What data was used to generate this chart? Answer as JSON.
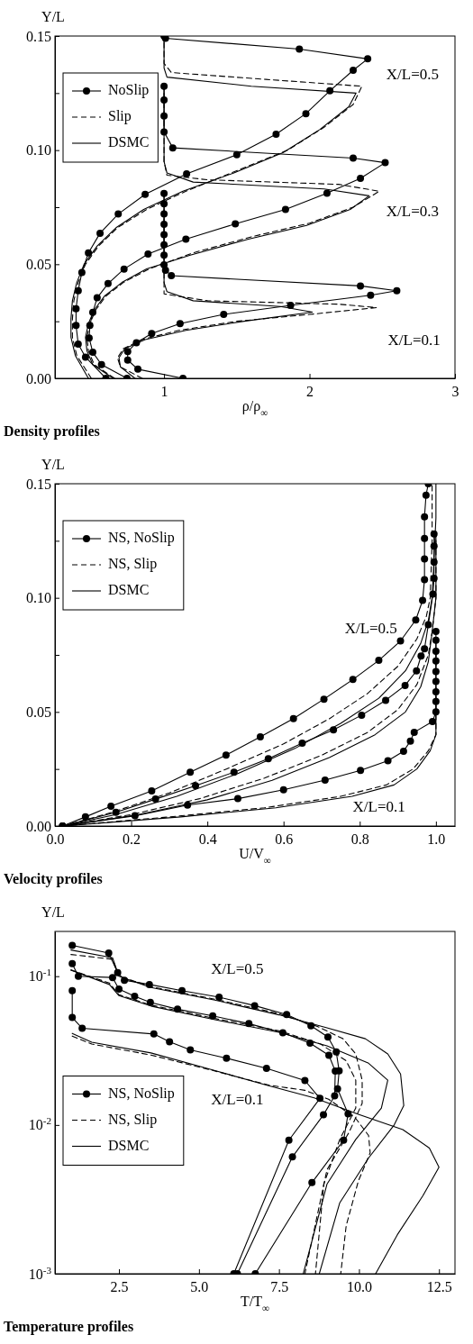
{
  "chart_data": [
    {
      "type": "line",
      "title": "Density profiles",
      "xlabel": "ρ/ρ$_{∞}$",
      "ylabel": "Y/L",
      "xlim": [
        0.25,
        3
      ],
      "ylim": [
        0,
        0.15
      ],
      "xticks": [
        1,
        2,
        3
      ],
      "yticks": [
        {
          "value": 0,
          "label": "0.00"
        },
        {
          "value": 0.025,
          "label": null
        },
        {
          "value": 0.05,
          "label": "0.05"
        },
        {
          "value": 0.075,
          "label": null
        },
        {
          "value": 0.1,
          "label": "0.10"
        },
        {
          "value": 0.125,
          "label": null
        },
        {
          "value": 0.15,
          "label": "0.15"
        }
      ],
      "legend": "top left",
      "annotations": [
        "X/L=0.5",
        "X/L=0.3",
        "X/L=0.1"
      ],
      "series": [
        {
          "name": "NoSlip",
          "color": "#000000",
          "marker": "circle",
          "line_style": "solid",
          "x": [
            1.13,
            0.82,
            0.75,
            0.75,
            0.81,
            0.915,
            1.11,
            1.41,
            1.87,
            2.42,
            2.6,
            2.35,
            1.05,
            1.01,
            1.0,
            1.0,
            1.0,
            1.0,
            1.0,
            1.0,
            1.0,
            1.0
          ],
          "values": [
            0,
            0.004,
            0.008,
            0.0117,
            0.0156,
            0.0196,
            0.024,
            0.028,
            0.032,
            0.0364,
            0.0384,
            0.0405,
            0.045,
            0.0474,
            0.0497,
            0.054,
            0.0585,
            0.063,
            0.0675,
            0.072,
            0.0765,
            0.081
          ]
        },
        {
          "name": "Slip",
          "color": "#000000",
          "marker": "none",
          "line_style": "dashed",
          "x": [
            0.85,
            0.7,
            0.68,
            0.72,
            0.85,
            1.1,
            1.5,
            2.0,
            2.46,
            2.2,
            1.3,
            1.0,
            1.0,
            1.0,
            1.0
          ],
          "values": [
            0,
            0.005,
            0.009,
            0.013,
            0.017,
            0.021,
            0.025,
            0.028,
            0.031,
            0.0325,
            0.034,
            0.037,
            0.04,
            0.045,
            0.082
          ]
        },
        {
          "name": "DSMC",
          "color": "#000000",
          "marker": "none",
          "line_style": "solid",
          "x": [
            0.8,
            0.7,
            0.69,
            0.73,
            0.87,
            1.15,
            1.55,
            2.02,
            1.8,
            1.2,
            1.02,
            1.0,
            1.0,
            1.0
          ],
          "values": [
            0,
            0.005,
            0.009,
            0.013,
            0.017,
            0.021,
            0.025,
            0.029,
            0.0315,
            0.034,
            0.038,
            0.042,
            0.045,
            0.082
          ]
        },
        {
          "color": "#000000",
          "marker": "circle",
          "line_style": "solid",
          "x": [
            0.745,
            0.57,
            0.51,
            0.485,
            0.49,
            0.51,
            0.54,
            0.615,
            0.725,
            0.89,
            1.15,
            1.49,
            1.835,
            2.12,
            2.35,
            2.52,
            2.3,
            1.06,
            1.0,
            1.0,
            1.0,
            1.0
          ],
          "values": [
            0,
            0.006,
            0.0114,
            0.0177,
            0.0232,
            0.0289,
            0.0353,
            0.0415,
            0.0479,
            0.0545,
            0.061,
            0.0677,
            0.074,
            0.0811,
            0.0876,
            0.0945,
            0.0965,
            0.101,
            0.108,
            0.115,
            0.122,
            0.128
          ]
        },
        {
          "color": "#000000",
          "marker": "none",
          "line_style": "dashed",
          "x": [
            0.66,
            0.52,
            0.48,
            0.47,
            0.49,
            0.53,
            0.6,
            0.72,
            0.9,
            1.2,
            1.6,
            2.0,
            2.3,
            2.48,
            2.2,
            1.3,
            1.02,
            1.0,
            1.0
          ],
          "values": [
            0,
            0.006,
            0.012,
            0.018,
            0.024,
            0.03,
            0.036,
            0.042,
            0.048,
            0.055,
            0.062,
            0.068,
            0.075,
            0.082,
            0.085,
            0.087,
            0.089,
            0.095,
            0.128
          ]
        },
        {
          "color": "#000000",
          "marker": "none",
          "line_style": "solid",
          "x": [
            0.65,
            0.51,
            0.47,
            0.46,
            0.48,
            0.52,
            0.59,
            0.71,
            0.88,
            1.18,
            1.58,
            1.98,
            2.28,
            2.41,
            2.1,
            1.2,
            1.02,
            1.0,
            1.0
          ],
          "values": [
            0,
            0.006,
            0.012,
            0.018,
            0.024,
            0.03,
            0.036,
            0.042,
            0.048,
            0.054,
            0.061,
            0.067,
            0.074,
            0.08,
            0.083,
            0.086,
            0.09,
            0.095,
            0.128
          ]
        },
        {
          "color": "#000000",
          "marker": "circle",
          "line_style": "solid",
          "x": [
            0.6,
            0.46,
            0.41,
            0.395,
            0.395,
            0.41,
            0.435,
            0.48,
            0.56,
            0.685,
            0.87,
            1.155,
            1.5,
            1.77,
            1.975,
            2.14,
            2.3,
            2.4,
            1.93,
            1.01,
            1.0
          ],
          "values": [
            0,
            0.0093,
            0.015,
            0.0232,
            0.0305,
            0.0384,
            0.0464,
            0.055,
            0.0636,
            0.072,
            0.0806,
            0.0896,
            0.098,
            0.107,
            0.116,
            0.126,
            0.135,
            0.14,
            0.1443,
            0.149,
            0.15
          ]
        },
        {
          "color": "#000000",
          "marker": "none",
          "line_style": "dashed",
          "x": [
            0.5,
            0.4,
            0.37,
            0.37,
            0.38,
            0.41,
            0.46,
            0.55,
            0.68,
            0.88,
            1.15,
            1.5,
            1.85,
            2.1,
            2.3,
            2.36,
            1.7,
            1.05,
            1.0,
            1.0
          ],
          "values": [
            0,
            0.01,
            0.018,
            0.026,
            0.034,
            0.042,
            0.05,
            0.058,
            0.066,
            0.074,
            0.082,
            0.091,
            0.1,
            0.11,
            0.12,
            0.128,
            0.131,
            0.134,
            0.138,
            0.15
          ]
        },
        {
          "color": "#000000",
          "marker": "none",
          "line_style": "solid",
          "x": [
            0.48,
            0.39,
            0.36,
            0.36,
            0.37,
            0.4,
            0.45,
            0.54,
            0.67,
            0.86,
            1.13,
            1.48,
            1.82,
            2.07,
            2.27,
            2.32,
            1.6,
            1.02,
            1.0,
            1.0
          ],
          "values": [
            0,
            0.01,
            0.018,
            0.026,
            0.034,
            0.042,
            0.05,
            0.058,
            0.066,
            0.074,
            0.082,
            0.09,
            0.099,
            0.109,
            0.119,
            0.125,
            0.128,
            0.132,
            0.136,
            0.15
          ]
        }
      ]
    },
    {
      "type": "line",
      "title": "Velocity profiles",
      "xlabel": "U/V$_{∞}$",
      "ylabel": "Y/L",
      "xlim": [
        0,
        1.05
      ],
      "ylim": [
        0,
        0.15
      ],
      "xticks": [
        {
          "value": 0,
          "label": "0.0"
        },
        {
          "value": 0.2,
          "label": "0.2"
        },
        {
          "value": 0.4,
          "label": "0.4"
        },
        {
          "value": 0.6,
          "label": "0.6"
        },
        {
          "value": 0.8,
          "label": "0.8"
        },
        {
          "value": 1.0,
          "label": "1.0"
        }
      ],
      "yticks": [
        {
          "value": 0,
          "label": "0.00"
        },
        {
          "value": 0.025,
          "label": null
        },
        {
          "value": 0.05,
          "label": "0.05"
        },
        {
          "value": 0.075,
          "label": null
        },
        {
          "value": 0.1,
          "label": "0.10"
        },
        {
          "value": 0.125,
          "label": null
        },
        {
          "value": 0.15,
          "label": "0.15"
        }
      ],
      "legend": "top left",
      "annotations": [
        "X/L=0.5",
        "X/L=0.1"
      ],
      "series": [
        {
          "name": "NS, NoSlip",
          "color": "#000000",
          "marker": "circle",
          "line_style": "solid",
          "x": [
            0.02,
            0.21,
            0.348,
            0.48,
            0.6,
            0.709,
            0.802,
            0.874,
            0.915,
            0.933,
            0.943,
            0.991,
            1.0,
            1.0,
            1.0,
            1.0,
            1.0,
            1.0,
            1.0,
            1.0,
            1.0
          ],
          "values": [
            0,
            0.0045,
            0.0092,
            0.012,
            0.0159,
            0.0201,
            0.0244,
            0.0286,
            0.0328,
            0.0372,
            0.0411,
            0.0458,
            0.05,
            0.0546,
            0.0588,
            0.0634,
            0.0677,
            0.0723,
            0.0766,
            0.0814,
            0.0853
          ]
        },
        {
          "name": "NS, Slip",
          "color": "#000000",
          "marker": "none",
          "line_style": "dashed",
          "x": [
            0.02,
            0.3,
            0.55,
            0.75,
            0.87,
            0.94,
            0.98,
            1.0,
            1.0
          ],
          "values": [
            0,
            0.004,
            0.008,
            0.013,
            0.018,
            0.025,
            0.033,
            0.04,
            0.08
          ]
        },
        {
          "name": "DSMC",
          "color": "#000000",
          "marker": "none",
          "line_style": "solid",
          "x": [
            0.02,
            0.33,
            0.58,
            0.78,
            0.89,
            0.95,
            0.985,
            1.0,
            1.0
          ],
          "values": [
            0,
            0.004,
            0.008,
            0.013,
            0.018,
            0.025,
            0.033,
            0.04,
            0.078
          ]
        },
        {
          "color": "#000000",
          "marker": "circle",
          "line_style": "solid",
          "x": [
            0.02,
            0.16,
            0.264,
            0.369,
            0.47,
            0.56,
            0.649,
            0.731,
            0.805,
            0.868,
            0.919,
            0.949,
            0.961,
            0.97,
            0.98,
            0.992,
            0.995,
            0.995,
            0.995,
            0.995
          ],
          "values": [
            0,
            0.006,
            0.0118,
            0.0177,
            0.0236,
            0.0295,
            0.0363,
            0.0421,
            0.0486,
            0.0551,
            0.0616,
            0.068,
            0.0745,
            0.0777,
            0.0882,
            0.1016,
            0.1086,
            0.1157,
            0.1227,
            0.128
          ]
        },
        {
          "color": "#000000",
          "marker": "none",
          "line_style": "dashed",
          "x": [
            0.02,
            0.2,
            0.38,
            0.55,
            0.7,
            0.82,
            0.9,
            0.95,
            0.98,
            0.99,
            1.0,
            1.0
          ],
          "values": [
            0,
            0.005,
            0.012,
            0.021,
            0.031,
            0.041,
            0.051,
            0.062,
            0.075,
            0.085,
            0.1,
            0.128
          ]
        },
        {
          "color": "#000000",
          "marker": "none",
          "line_style": "solid",
          "x": [
            0.02,
            0.22,
            0.4,
            0.57,
            0.72,
            0.84,
            0.92,
            0.96,
            0.98,
            0.99,
            1.0,
            1.0
          ],
          "values": [
            0,
            0.005,
            0.0115,
            0.02,
            0.03,
            0.04,
            0.05,
            0.061,
            0.072,
            0.085,
            0.1,
            0.128
          ]
        },
        {
          "color": "#000000",
          "marker": "circle",
          "line_style": "solid",
          "x": [
            0.02,
            0.08,
            0.147,
            0.254,
            0.355,
            0.449,
            0.539,
            0.626,
            0.706,
            0.782,
            0.85,
            0.907,
            0.947,
            0.965,
            0.97,
            0.97,
            0.97,
            0.97,
            0.974,
            0.98
          ],
          "values": [
            0,
            0.004,
            0.0087,
            0.0154,
            0.0236,
            0.0311,
            0.0391,
            0.0471,
            0.0556,
            0.0642,
            0.0726,
            0.0811,
            0.0903,
            0.0989,
            0.108,
            0.117,
            0.126,
            0.1355,
            0.145,
            0.15
          ]
        },
        {
          "color": "#000000",
          "marker": "none",
          "line_style": "dashed",
          "x": [
            0.02,
            0.15,
            0.3,
            0.45,
            0.6,
            0.72,
            0.82,
            0.9,
            0.95,
            0.975,
            0.985,
            0.99,
            0.99
          ],
          "values": [
            0,
            0.006,
            0.0145,
            0.025,
            0.036,
            0.047,
            0.058,
            0.07,
            0.082,
            0.092,
            0.1,
            0.125,
            0.15
          ]
        },
        {
          "color": "#000000",
          "marker": "none",
          "line_style": "solid",
          "x": [
            0.02,
            0.16,
            0.32,
            0.48,
            0.63,
            0.75,
            0.85,
            0.92,
            0.96,
            0.98,
            0.99,
            1.0,
            1.0
          ],
          "values": [
            0,
            0.005,
            0.013,
            0.023,
            0.034,
            0.045,
            0.056,
            0.068,
            0.08,
            0.09,
            0.1,
            0.135,
            0.15
          ]
        }
      ]
    },
    {
      "type": "line",
      "title": "Temperature profiles",
      "xlabel": "T/T$_{∞}$",
      "ylabel": "Y/L",
      "log": "y",
      "xlim": [
        0.5,
        13
      ],
      "ylim": [
        0.001,
        0.2
      ],
      "xticks": [
        {
          "value": 2.5,
          "label": "2.5"
        },
        {
          "value": 5.0,
          "label": "5.0"
        },
        {
          "value": 7.5,
          "label": "7.5"
        },
        {
          "value": 10.0,
          "label": "10.0"
        },
        {
          "value": 12.5,
          "label": "12.5"
        }
      ],
      "yticks": [
        {
          "value": 0.001,
          "label": "10$^{-3}$"
        },
        {
          "value": 0.01,
          "label": "10$^{-2}$"
        },
        {
          "value": 0.1,
          "label": "10$^{-1}$"
        }
      ],
      "legend": "left",
      "annotations": [
        "X/L=0.5",
        "X/L=0.1"
      ],
      "series": [
        {
          "name": "NS, NoSlip",
          "color": "#000000",
          "marker": "circle",
          "line_style": "solid",
          "x": [
            1.04,
            1.04,
            1.35,
            3.59,
            4.08,
            4.73,
            5.86,
            7.11,
            8.31,
            8.78,
            7.81,
            6.09
          ],
          "values": [
            0.08,
            0.0528,
            0.0447,
            0.0409,
            0.0363,
            0.032,
            0.0281,
            0.024,
            0.0199,
            0.0151,
            0.0079,
            0.001
          ]
        },
        {
          "name": "NS, Slip",
          "color": "#000000",
          "marker": "none",
          "line_style": "dashed",
          "x": [
            1.04,
            1.65,
            3.5,
            5.35,
            7.2,
            8.31,
            9.05,
            9.88,
            10.3,
            10.35,
            9.98,
            9.6,
            9.43
          ],
          "values": [
            0.0396,
            0.035,
            0.0295,
            0.0235,
            0.0185,
            0.0171,
            0.0149,
            0.0112,
            0.0085,
            0.0065,
            0.0042,
            0.0021,
            0.001
          ]
        },
        {
          "name": "DSMC",
          "color": "#000000",
          "marker": "none",
          "line_style": "solid",
          "x": [
            1.04,
            1.65,
            3.5,
            5.35,
            7.2,
            8.6,
            9.98,
            11.37,
            12.2,
            12.5,
            12.0,
            11.2,
            10.52
          ],
          "values": [
            0.0413,
            0.036,
            0.0305,
            0.0237,
            0.0183,
            0.0152,
            0.0118,
            0.0093,
            0.007,
            0.0052,
            0.00335,
            0.00183,
            0.001
          ]
        },
        {
          "color": "#000000",
          "marker": "circle",
          "line_style": "solid",
          "x": [
            1.04,
            1.23,
            2.3,
            2.5,
            2.99,
            3.48,
            4.33,
            5.43,
            6.56,
            7.62,
            8.47,
            9.06,
            9.26,
            9.24,
            8.89,
            7.92,
            6.2
          ],
          "values": [
            0.1216,
            0.1,
            0.098,
            0.082,
            0.0733,
            0.0667,
            0.06,
            0.0541,
            0.048,
            0.0417,
            0.0355,
            0.0294,
            0.023,
            0.0157,
            0.0117,
            0.0061,
            0.001
          ]
        },
        {
          "color": "#000000",
          "marker": "none",
          "line_style": "dashed",
          "x": [
            1.0,
            2.2,
            2.5,
            3.5,
            5.5,
            7.5,
            8.8,
            9.6,
            9.9,
            9.9,
            9.4,
            8.9,
            8.64
          ],
          "values": [
            0.11,
            0.09,
            0.075,
            0.064,
            0.052,
            0.043,
            0.035,
            0.027,
            0.02,
            0.013,
            0.008,
            0.004,
            0.001
          ]
        },
        {
          "color": "#000000",
          "marker": "none",
          "line_style": "solid",
          "x": [
            1.0,
            2.2,
            2.5,
            3.5,
            5.5,
            7.5,
            9.0,
            10.3,
            10.9,
            10.7,
            9.9,
            9.0,
            8.26
          ],
          "values": [
            0.11,
            0.088,
            0.074,
            0.063,
            0.051,
            0.042,
            0.034,
            0.026,
            0.02,
            0.013,
            0.008,
            0.004,
            0.001
          ]
        },
        {
          "color": "#000000",
          "marker": "circle",
          "line_style": "solid",
          "x": [
            1.04,
            2.18,
            2.46,
            2.67,
            3.45,
            4.47,
            5.63,
            6.74,
            7.74,
            8.5,
            9.03,
            9.29,
            9.38,
            9.33,
            9.66,
            9.52,
            8.53,
            6.76
          ],
          "values": [
            0.161,
            0.143,
            0.1057,
            0.094,
            0.088,
            0.08,
            0.0723,
            0.0634,
            0.0553,
            0.0464,
            0.039,
            0.031,
            0.0231,
            0.0175,
            0.0119,
            0.0079,
            0.0041,
            0.001
          ]
        },
        {
          "color": "#000000",
          "marker": "none",
          "line_style": "dashed",
          "x": [
            1.0,
            2.3,
            2.5,
            3.5,
            5.5,
            7.5,
            8.7,
            9.5,
            9.9,
            10.1,
            10.1,
            9.7,
            9.0,
            8.31
          ],
          "values": [
            0.14,
            0.13,
            0.1,
            0.085,
            0.07,
            0.056,
            0.046,
            0.038,
            0.03,
            0.02,
            0.014,
            0.009,
            0.005,
            0.001
          ]
        },
        {
          "color": "#000000",
          "marker": "none",
          "line_style": "solid",
          "x": [
            1.0,
            2.3,
            2.5,
            3.5,
            5.5,
            7.5,
            9.0,
            10.2,
            10.9,
            11.3,
            11.4,
            11.1,
            10.3,
            9.4,
            8.76
          ],
          "values": [
            0.15,
            0.133,
            0.1,
            0.084,
            0.069,
            0.055,
            0.045,
            0.038,
            0.03,
            0.022,
            0.0135,
            0.01,
            0.006,
            0.003,
            0.001
          ]
        }
      ]
    }
  ]
}
